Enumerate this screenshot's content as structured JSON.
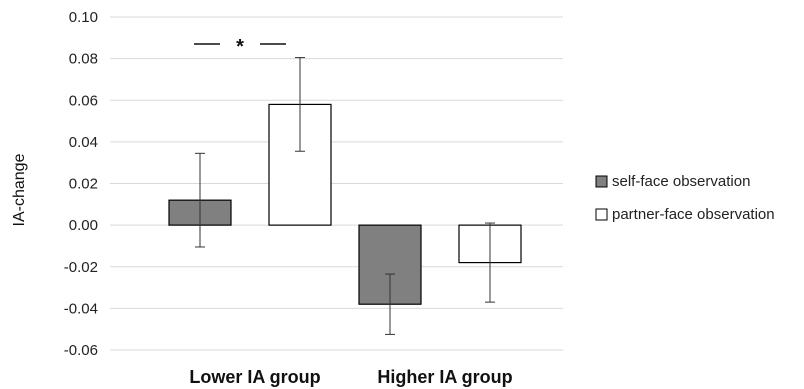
{
  "chart_data": {
    "type": "bar",
    "title": "",
    "xlabel": "",
    "ylabel": "IA-change",
    "ylim": [
      -0.06,
      0.1
    ],
    "yticks": [
      "0.10",
      "0.08",
      "0.06",
      "0.04",
      "0.02",
      "0.00",
      "-0.02",
      "-0.04",
      "-0.06"
    ],
    "grid": true,
    "legend_position": "right",
    "categories": [
      "Lower IA group",
      "Higher IA group"
    ],
    "series": [
      {
        "name": "self-face observation",
        "color": "#808080",
        "values": [
          0.012,
          -0.038
        ],
        "error": [
          0.0225,
          0.0145
        ]
      },
      {
        "name": "partner-face observation",
        "color": "#ffffff",
        "values": [
          0.058,
          -0.018
        ],
        "error": [
          0.0225,
          0.019
        ]
      }
    ],
    "annotations": [
      {
        "text": "*",
        "category": "Lower IA group",
        "y": 0.087
      }
    ]
  }
}
